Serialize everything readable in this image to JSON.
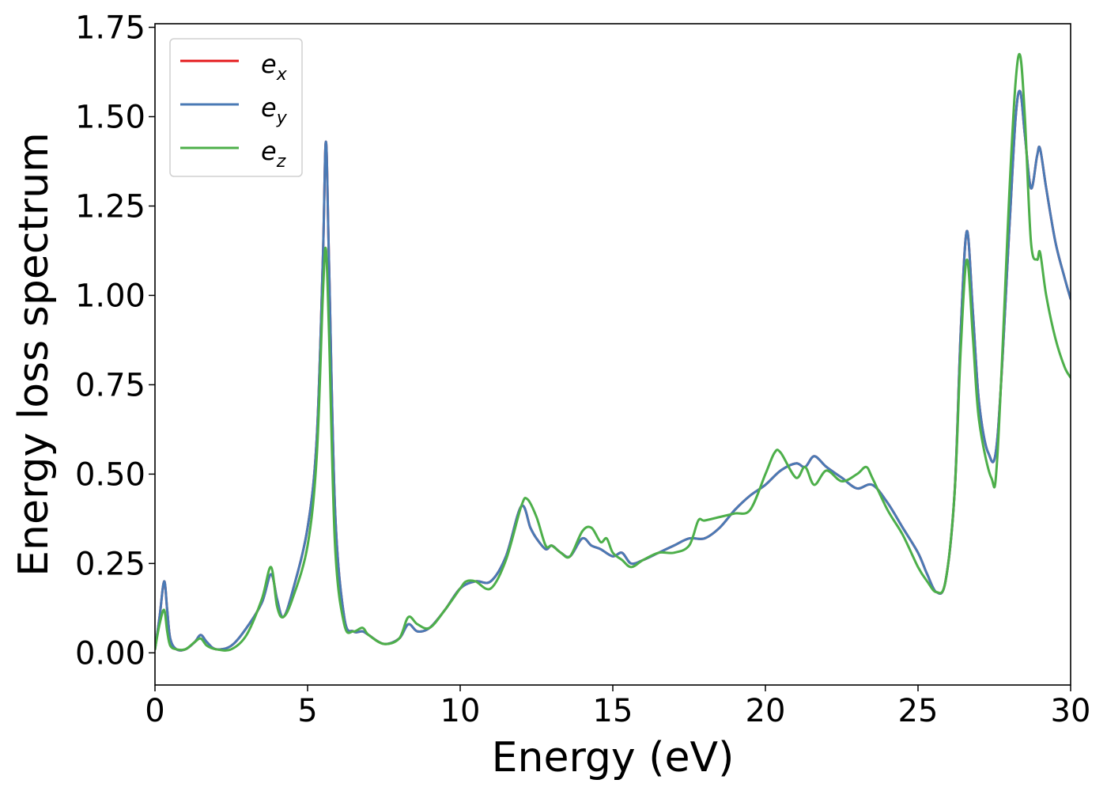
{
  "chart_data": {
    "type": "line",
    "title": "",
    "xlabel": "Energy (eV)",
    "ylabel": "Energy loss spectrum",
    "xlim": [
      0,
      30
    ],
    "ylim": [
      -0.09,
      1.76
    ],
    "xticks": [
      0,
      5,
      10,
      15,
      20,
      25,
      30
    ],
    "xtick_labels": [
      "0",
      "5",
      "10",
      "15",
      "20",
      "25",
      "30"
    ],
    "yticks": [
      0,
      0.25,
      0.5,
      0.75,
      1.0,
      1.25,
      1.5,
      1.75
    ],
    "ytick_labels": [
      "0.00",
      "0.25",
      "0.50",
      "0.75",
      "1.00",
      "1.25",
      "1.50",
      "1.75"
    ],
    "grid": false,
    "legend_position": "top-left",
    "series": [
      {
        "name": "e_x",
        "label_main": "e",
        "label_sub": "x",
        "color": "#e41a1c",
        "x": [
          0,
          0.15,
          0.3,
          0.4,
          0.5,
          0.7,
          1.0,
          1.3,
          1.5,
          1.7,
          2.0,
          2.5,
          3.0,
          3.5,
          3.8,
          4.0,
          4.2,
          4.5,
          5.0,
          5.3,
          5.5,
          5.6,
          5.7,
          5.9,
          6.2,
          6.5,
          6.8,
          7.0,
          7.5,
          8.0,
          8.3,
          8.6,
          9.0,
          9.5,
          10.0,
          10.5,
          11.0,
          11.5,
          12.0,
          12.3,
          12.5,
          12.8,
          13.0,
          13.3,
          13.6,
          14.0,
          14.3,
          14.6,
          15.0,
          15.3,
          15.6,
          16.0,
          16.5,
          17.0,
          17.5,
          18.0,
          18.5,
          19.0,
          19.5,
          20.0,
          20.5,
          21.0,
          21.3,
          21.6,
          22.0,
          22.5,
          23.0,
          23.5,
          24.0,
          24.5,
          25.0,
          25.3,
          25.6,
          25.9,
          26.2,
          26.4,
          26.6,
          26.8,
          27.0,
          27.3,
          27.6,
          28.0,
          28.2,
          28.35,
          28.5,
          28.7,
          28.9,
          29.0,
          29.2,
          29.5,
          29.8,
          30.0
        ],
        "y": [
          0.01,
          0.1,
          0.2,
          0.12,
          0.04,
          0.01,
          0.01,
          0.03,
          0.05,
          0.03,
          0.01,
          0.02,
          0.07,
          0.14,
          0.22,
          0.15,
          0.1,
          0.17,
          0.35,
          0.6,
          1.1,
          1.43,
          1.1,
          0.4,
          0.1,
          0.06,
          0.06,
          0.05,
          0.025,
          0.04,
          0.08,
          0.06,
          0.07,
          0.12,
          0.18,
          0.2,
          0.2,
          0.27,
          0.41,
          0.35,
          0.32,
          0.29,
          0.3,
          0.28,
          0.27,
          0.32,
          0.3,
          0.29,
          0.27,
          0.28,
          0.25,
          0.26,
          0.28,
          0.3,
          0.32,
          0.32,
          0.35,
          0.4,
          0.44,
          0.47,
          0.51,
          0.53,
          0.52,
          0.55,
          0.52,
          0.49,
          0.46,
          0.47,
          0.42,
          0.35,
          0.28,
          0.22,
          0.17,
          0.2,
          0.45,
          0.9,
          1.18,
          0.95,
          0.7,
          0.56,
          0.6,
          1.2,
          1.5,
          1.57,
          1.45,
          1.3,
          1.39,
          1.41,
          1.3,
          1.15,
          1.05,
          0.99
        ]
      },
      {
        "name": "e_y",
        "label_main": "e",
        "label_sub": "y",
        "color": "#4a7ab5",
        "x": [
          0,
          0.15,
          0.3,
          0.4,
          0.5,
          0.7,
          1.0,
          1.3,
          1.5,
          1.7,
          2.0,
          2.5,
          3.0,
          3.5,
          3.8,
          4.0,
          4.2,
          4.5,
          5.0,
          5.3,
          5.5,
          5.6,
          5.7,
          5.9,
          6.2,
          6.5,
          6.8,
          7.0,
          7.5,
          8.0,
          8.3,
          8.6,
          9.0,
          9.5,
          10.0,
          10.5,
          11.0,
          11.5,
          12.0,
          12.3,
          12.5,
          12.8,
          13.0,
          13.3,
          13.6,
          14.0,
          14.3,
          14.6,
          15.0,
          15.3,
          15.6,
          16.0,
          16.5,
          17.0,
          17.5,
          18.0,
          18.5,
          19.0,
          19.5,
          20.0,
          20.5,
          21.0,
          21.3,
          21.6,
          22.0,
          22.5,
          23.0,
          23.5,
          24.0,
          24.5,
          25.0,
          25.3,
          25.6,
          25.9,
          26.2,
          26.4,
          26.6,
          26.8,
          27.0,
          27.3,
          27.6,
          28.0,
          28.2,
          28.35,
          28.5,
          28.7,
          28.9,
          29.0,
          29.2,
          29.5,
          29.8,
          30.0
        ],
        "y": [
          0.01,
          0.1,
          0.2,
          0.12,
          0.04,
          0.01,
          0.01,
          0.03,
          0.05,
          0.03,
          0.01,
          0.02,
          0.07,
          0.14,
          0.22,
          0.15,
          0.1,
          0.17,
          0.35,
          0.6,
          1.1,
          1.43,
          1.1,
          0.4,
          0.1,
          0.06,
          0.06,
          0.05,
          0.025,
          0.04,
          0.08,
          0.06,
          0.07,
          0.12,
          0.18,
          0.2,
          0.2,
          0.27,
          0.41,
          0.35,
          0.32,
          0.29,
          0.3,
          0.28,
          0.27,
          0.32,
          0.3,
          0.29,
          0.27,
          0.28,
          0.25,
          0.26,
          0.28,
          0.3,
          0.32,
          0.32,
          0.35,
          0.4,
          0.44,
          0.47,
          0.51,
          0.53,
          0.52,
          0.55,
          0.52,
          0.49,
          0.46,
          0.47,
          0.42,
          0.35,
          0.28,
          0.22,
          0.17,
          0.2,
          0.45,
          0.9,
          1.18,
          0.95,
          0.7,
          0.56,
          0.6,
          1.2,
          1.5,
          1.57,
          1.45,
          1.3,
          1.39,
          1.41,
          1.3,
          1.15,
          1.05,
          0.99
        ]
      },
      {
        "name": "e_z",
        "label_main": "e",
        "label_sub": "z",
        "color": "#4daf4a",
        "x": [
          0,
          0.15,
          0.3,
          0.4,
          0.5,
          0.7,
          1.0,
          1.3,
          1.5,
          1.7,
          2.0,
          2.5,
          3.0,
          3.5,
          3.8,
          4.0,
          4.2,
          4.5,
          5.0,
          5.3,
          5.5,
          5.6,
          5.7,
          5.9,
          6.2,
          6.5,
          6.8,
          7.0,
          7.5,
          8.0,
          8.3,
          8.6,
          9.0,
          9.5,
          10.0,
          10.2,
          10.5,
          11.0,
          11.5,
          12.0,
          12.2,
          12.5,
          12.8,
          13.0,
          13.3,
          13.6,
          14.0,
          14.3,
          14.6,
          14.8,
          15.0,
          15.3,
          15.6,
          16.0,
          16.5,
          17.0,
          17.5,
          17.8,
          18.0,
          18.5,
          19.0,
          19.5,
          20.0,
          20.3,
          20.5,
          21.0,
          21.3,
          21.6,
          22.0,
          22.5,
          23.0,
          23.3,
          23.5,
          24.0,
          24.5,
          25.0,
          25.3,
          25.6,
          25.9,
          26.2,
          26.4,
          26.6,
          26.8,
          27.0,
          27.4,
          27.6,
          28.0,
          28.2,
          28.35,
          28.5,
          28.7,
          28.9,
          29.0,
          29.2,
          29.5,
          29.8,
          30.0
        ],
        "y": [
          0.01,
          0.08,
          0.12,
          0.06,
          0.02,
          0.01,
          0.01,
          0.03,
          0.04,
          0.02,
          0.01,
          0.01,
          0.05,
          0.15,
          0.24,
          0.13,
          0.1,
          0.15,
          0.3,
          0.55,
          1.0,
          1.13,
          0.9,
          0.3,
          0.08,
          0.06,
          0.07,
          0.05,
          0.025,
          0.04,
          0.1,
          0.08,
          0.07,
          0.12,
          0.18,
          0.2,
          0.2,
          0.18,
          0.26,
          0.41,
          0.43,
          0.38,
          0.3,
          0.3,
          0.28,
          0.27,
          0.34,
          0.35,
          0.31,
          0.32,
          0.28,
          0.26,
          0.24,
          0.26,
          0.28,
          0.28,
          0.3,
          0.37,
          0.37,
          0.38,
          0.39,
          0.4,
          0.5,
          0.56,
          0.56,
          0.49,
          0.52,
          0.47,
          0.51,
          0.48,
          0.5,
          0.52,
          0.49,
          0.4,
          0.33,
          0.24,
          0.2,
          0.17,
          0.2,
          0.45,
          0.85,
          1.1,
          0.88,
          0.65,
          0.49,
          0.55,
          1.3,
          1.6,
          1.67,
          1.5,
          1.15,
          1.1,
          1.12,
          1.0,
          0.88,
          0.8,
          0.77
        ]
      }
    ]
  }
}
